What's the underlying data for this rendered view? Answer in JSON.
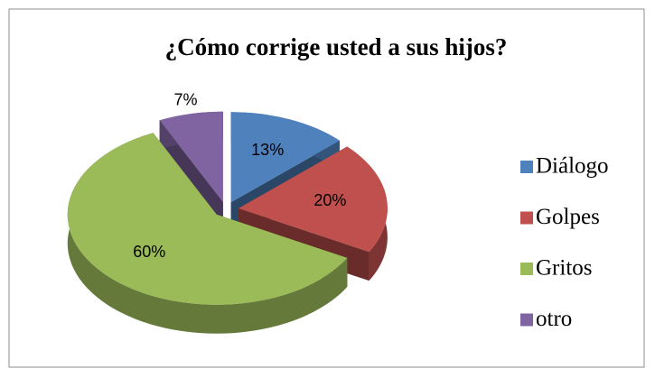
{
  "chart_data": {
    "type": "pie",
    "title": "¿Cómo corrige usted a sus hijos?",
    "categories": [
      "Diálogo",
      "Golpes",
      "Gritos",
      "otro"
    ],
    "values": [
      13,
      20,
      60,
      7
    ],
    "value_labels": [
      "13%",
      "20%",
      "60%",
      "7%"
    ],
    "colors": [
      "#4f81bd",
      "#c0504d",
      "#9bbb59",
      "#8064a2"
    ],
    "legend": "right"
  }
}
